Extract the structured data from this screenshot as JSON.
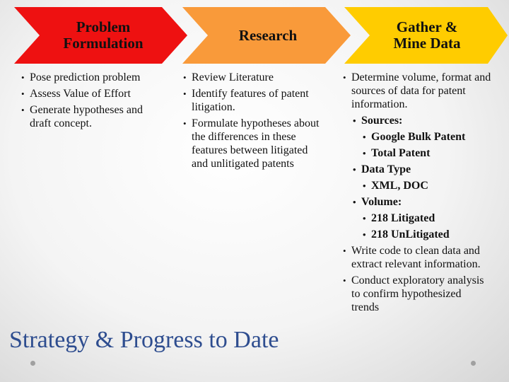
{
  "process": [
    {
      "label": "Problem\nFormulation",
      "color": "#ee1111",
      "bullets": [
        {
          "text": "Pose prediction problem",
          "level": 1
        },
        {
          "text": "Assess Value of Effort",
          "level": 1
        },
        {
          "text": "Generate hypotheses and draft concept.",
          "level": 1
        }
      ]
    },
    {
      "label": "Research",
      "color": "#f99a3a",
      "bullets": [
        {
          "text": "Review Literature",
          "level": 1
        },
        {
          "text": " Identify features of patent litigation.",
          "level": 1
        },
        {
          "text": "Formulate hypotheses about the differences in these features between litigated and unlitigated patents",
          "level": 1
        }
      ]
    },
    {
      "label": "Gather &\nMine Data",
      "color": "#ffcc00",
      "bullets": [
        {
          "text": "Determine volume, format and sources of data for patent information.",
          "level": 1
        },
        {
          "text": "Sources:",
          "level": 2
        },
        {
          "text": "Google Bulk Patent",
          "level": 3
        },
        {
          "text": "Total Patent",
          "level": 3
        },
        {
          "text": "Data Type",
          "level": 2
        },
        {
          "text": "XML, DOC",
          "level": 3
        },
        {
          "text": "Volume:",
          "level": 2
        },
        {
          "text": "218 Litigated",
          "level": 3
        },
        {
          "text": "218 UnLitigated",
          "level": 3
        },
        {
          "text": "Write code to clean data and extract relevant information.",
          "level": 1
        },
        {
          "text": "Conduct exploratory analysis to confirm hypothesized trends",
          "level": 1
        }
      ]
    }
  ],
  "slide_title": "Strategy & Progress to Date"
}
